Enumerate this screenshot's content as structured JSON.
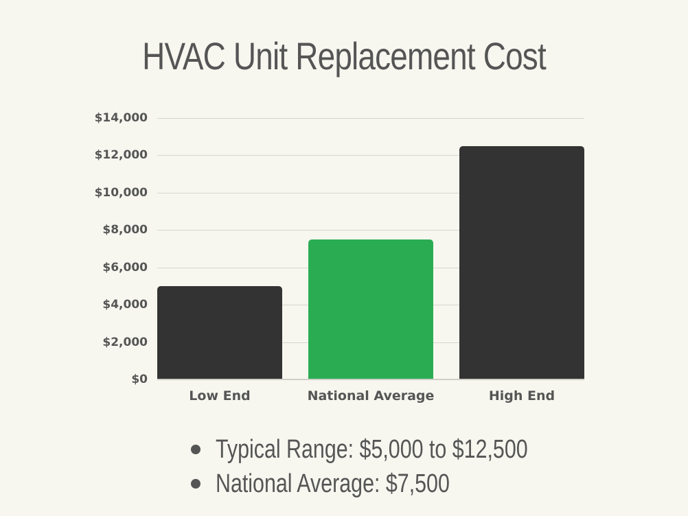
{
  "title": "HVAC Unit Replacement Cost",
  "y_ticks": [
    "$14,000",
    "$12,000",
    "$10,000",
    "$8,000",
    "$6,000",
    "$4,000",
    "$2,000",
    "$0"
  ],
  "bars": [
    {
      "label": "Low End",
      "value": 5000,
      "color": "#333333"
    },
    {
      "label": "National Average",
      "value": 7500,
      "color": "#2aad52"
    },
    {
      "label": "High End",
      "value": 12500,
      "color": "#333333"
    }
  ],
  "bullets": [
    "Typical Range: $5,000 to $12,500",
    "National Average: $7,500"
  ],
  "chart_data": {
    "type": "bar",
    "title": "HVAC Unit Replacement Cost",
    "categories": [
      "Low End",
      "National Average",
      "High End"
    ],
    "values": [
      5000,
      7500,
      12500
    ],
    "colors": [
      "#333333",
      "#2aad52",
      "#333333"
    ],
    "xlabel": "",
    "ylabel": "",
    "ylim": [
      0,
      14000
    ],
    "yticks": [
      0,
      2000,
      4000,
      6000,
      8000,
      10000,
      12000,
      14000
    ],
    "ytick_labels": [
      "$0",
      "$2,000",
      "$4,000",
      "$6,000",
      "$8,000",
      "$10,000",
      "$12,000",
      "$14,000"
    ],
    "grid": true,
    "legend": null,
    "annotations": [
      "Typical Range: $5,000 to $12,500",
      "National Average: $7,500"
    ]
  }
}
